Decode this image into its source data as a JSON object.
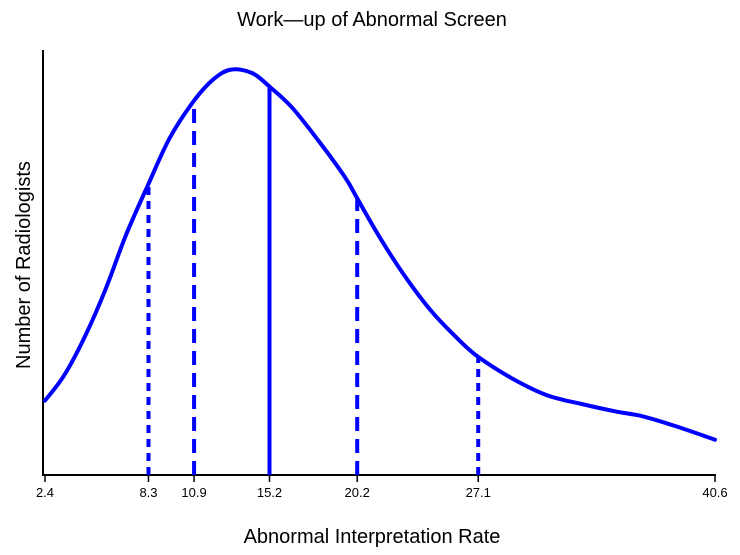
{
  "chart_data": {
    "type": "line",
    "title": "Work—up of Abnormal Screen",
    "xlabel": "Abnormal Interpretation Rate",
    "ylabel": "Number of Radiologists",
    "xlim": [
      2.4,
      40.6
    ],
    "ylim": [
      0,
      1
    ],
    "x_ticks": [
      2.4,
      8.3,
      10.9,
      15.2,
      20.2,
      27.1,
      40.6
    ],
    "x_tick_labels": [
      "2.4",
      "8.3",
      "10.9",
      "15.2",
      "20.2",
      "27.1",
      "40.6"
    ],
    "y_ticks": [],
    "grid": false,
    "series": [
      {
        "color": "#0000ff",
        "points": [
          {
            "x": 2.4,
            "y": 0.175
          },
          {
            "x": 3.5,
            "y": 0.235
          },
          {
            "x": 4.7,
            "y": 0.328
          },
          {
            "x": 5.9,
            "y": 0.442
          },
          {
            "x": 7.0,
            "y": 0.563
          },
          {
            "x": 8.3,
            "y": 0.685
          },
          {
            "x": 9.5,
            "y": 0.792
          },
          {
            "x": 10.9,
            "y": 0.881
          },
          {
            "x": 12.0,
            "y": 0.931
          },
          {
            "x": 13.0,
            "y": 0.954
          },
          {
            "x": 14.2,
            "y": 0.946
          },
          {
            "x": 15.2,
            "y": 0.914
          },
          {
            "x": 16.5,
            "y": 0.864
          },
          {
            "x": 18.0,
            "y": 0.786
          },
          {
            "x": 19.5,
            "y": 0.701
          },
          {
            "x": 20.2,
            "y": 0.651
          },
          {
            "x": 21.5,
            "y": 0.558
          },
          {
            "x": 23.0,
            "y": 0.463
          },
          {
            "x": 24.5,
            "y": 0.382
          },
          {
            "x": 26.0,
            "y": 0.318
          },
          {
            "x": 27.1,
            "y": 0.278
          },
          {
            "x": 29.0,
            "y": 0.228
          },
          {
            "x": 31.0,
            "y": 0.188
          },
          {
            "x": 33.0,
            "y": 0.167
          },
          {
            "x": 35.0,
            "y": 0.149
          },
          {
            "x": 36.5,
            "y": 0.138
          },
          {
            "x": 38.5,
            "y": 0.113
          },
          {
            "x": 40.6,
            "y": 0.083
          }
        ]
      }
    ],
    "reference_lines": [
      {
        "x": 8.3,
        "style": "dotted"
      },
      {
        "x": 10.9,
        "style": "dashed"
      },
      {
        "x": 15.2,
        "style": "solid"
      },
      {
        "x": 20.2,
        "style": "dashed"
      },
      {
        "x": 27.1,
        "style": "dotted"
      }
    ]
  }
}
